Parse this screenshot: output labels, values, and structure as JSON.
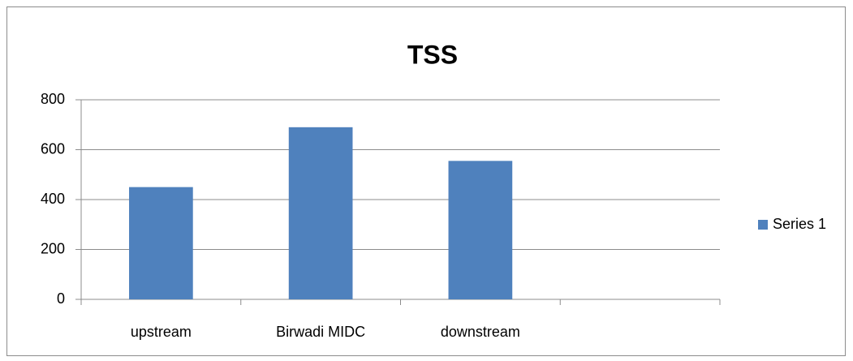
{
  "chart_data": {
    "type": "bar",
    "title": "TSS",
    "categories": [
      "upstream",
      "Birwadi MIDC",
      "downstream",
      null
    ],
    "series": [
      {
        "name": "Series 1",
        "color": "#4f81bd",
        "values": [
          450,
          690,
          555,
          null
        ]
      }
    ],
    "ylim": [
      0,
      800
    ],
    "yticks": [
      0,
      200,
      400,
      600,
      800
    ],
    "grid": true,
    "legend": "right"
  }
}
